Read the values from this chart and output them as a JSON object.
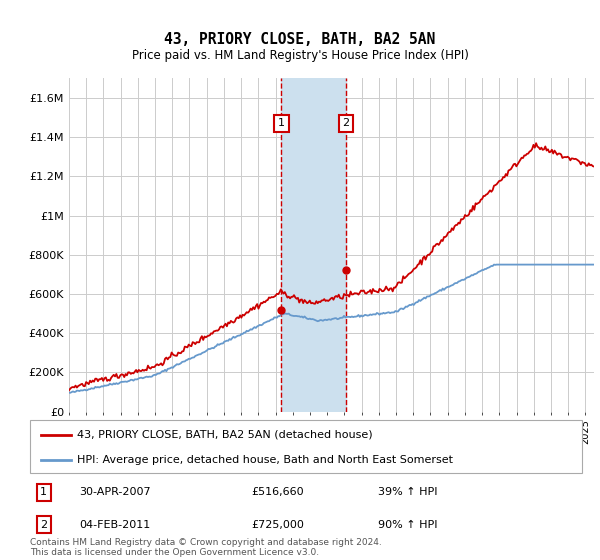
{
  "title": "43, PRIORY CLOSE, BATH, BA2 5AN",
  "subtitle": "Price paid vs. HM Land Registry's House Price Index (HPI)",
  "legend_line1": "43, PRIORY CLOSE, BATH, BA2 5AN (detached house)",
  "legend_line2": "HPI: Average price, detached house, Bath and North East Somerset",
  "footnote": "Contains HM Land Registry data © Crown copyright and database right 2024.\nThis data is licensed under the Open Government Licence v3.0.",
  "sale1_date": "30-APR-2007",
  "sale1_price": 516660,
  "sale1_pct": "39% ↑ HPI",
  "sale2_date": "04-FEB-2011",
  "sale2_price": 725000,
  "sale2_pct": "90% ↑ HPI",
  "sale1_year": 2007.33,
  "sale2_year": 2011.09,
  "ylim": [
    0,
    1700000
  ],
  "yticks": [
    0,
    200000,
    400000,
    600000,
    800000,
    1000000,
    1200000,
    1400000,
    1600000
  ],
  "red_color": "#cc0000",
  "blue_color": "#6699cc",
  "shade_color": "#cce0ee",
  "grid_color": "#cccccc",
  "bg_color": "#ffffff"
}
